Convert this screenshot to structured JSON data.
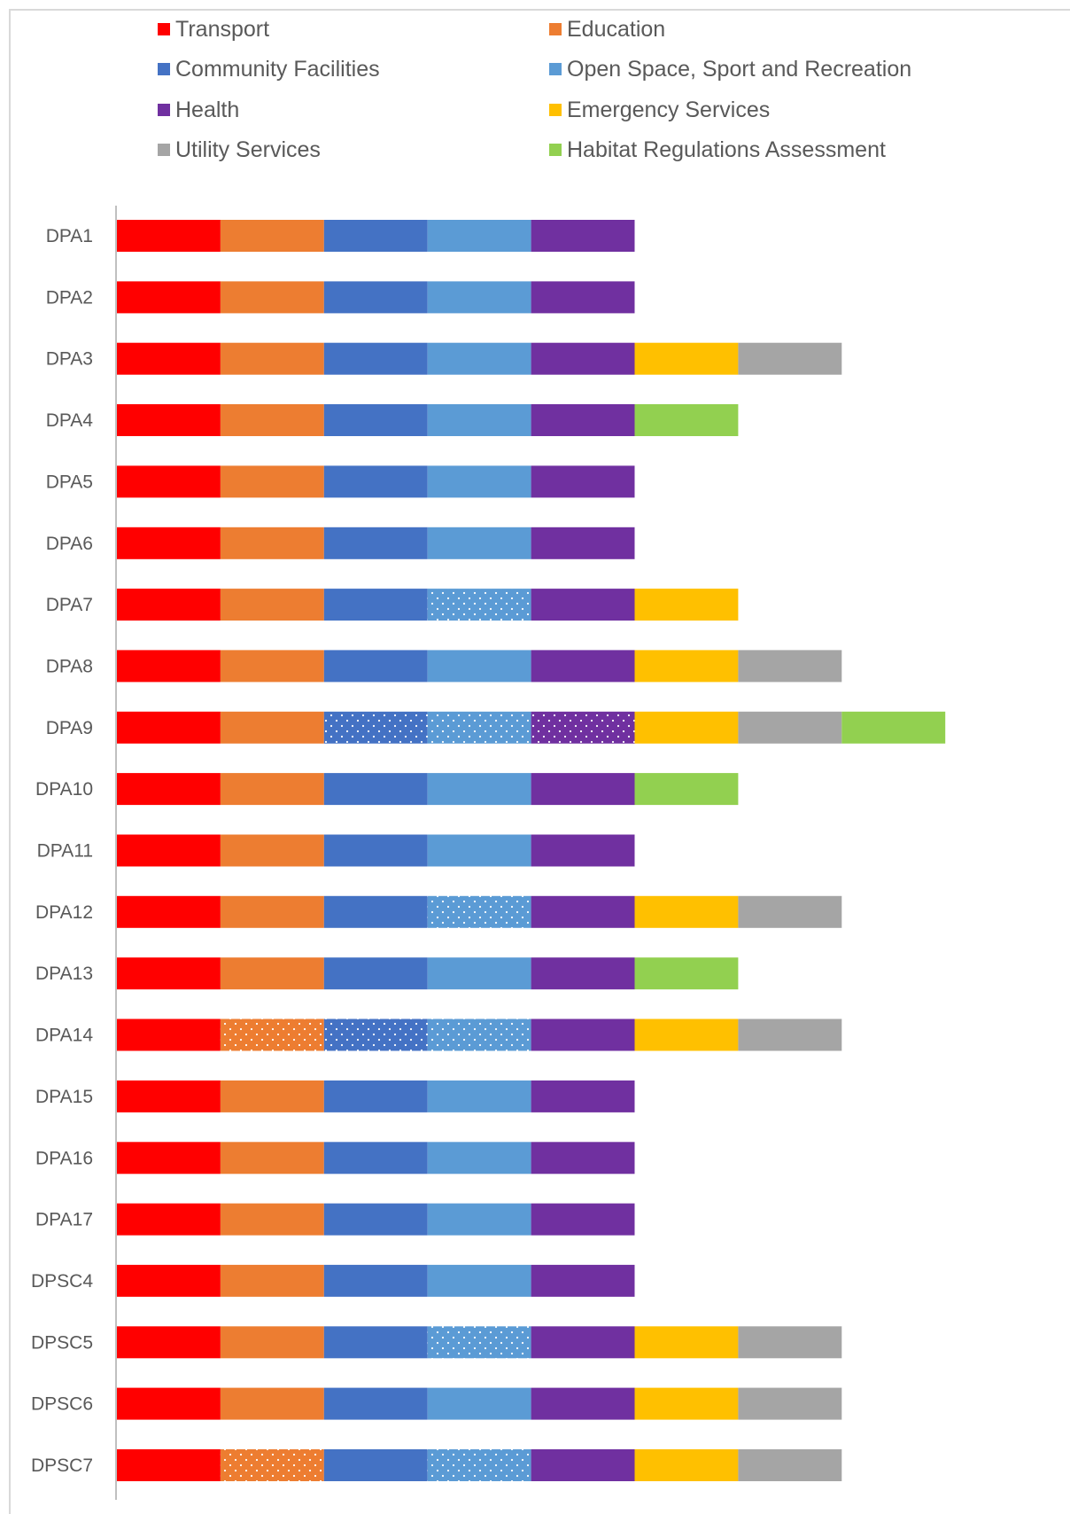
{
  "chart_data": {
    "type": "bar",
    "orientation": "horizontal",
    "stacked": true,
    "title": "",
    "xlabel": "",
    "ylabel": "",
    "grid": false,
    "legend_position": "top",
    "categories": [
      "DPA1",
      "DPA2",
      "DPA3",
      "DPA4",
      "DPA5",
      "DPA6",
      "DPA7",
      "DPA8",
      "DPA9",
      "DPA10",
      "DPA11",
      "DPA12",
      "DPA13",
      "DPA14",
      "DPA15",
      "DPA16",
      "DPA17",
      "DPSC4",
      "DPSC5",
      "DPSC6",
      "DPSC7"
    ],
    "series": [
      {
        "name": "Transport",
        "color": "#ff0000",
        "values": [
          1,
          1,
          1,
          1,
          1,
          1,
          1,
          1,
          1,
          1,
          1,
          1,
          1,
          1,
          1,
          1,
          1,
          1,
          1,
          1,
          1
        ],
        "dotted": []
      },
      {
        "name": "Education",
        "color": "#ed7d31",
        "values": [
          1,
          1,
          1,
          1,
          1,
          1,
          1,
          1,
          1,
          1,
          1,
          1,
          1,
          1,
          1,
          1,
          1,
          1,
          1,
          1,
          1
        ],
        "dotted": [
          "DPA14",
          "DPSC7"
        ]
      },
      {
        "name": "Community Facilities",
        "color": "#4472c4",
        "values": [
          1,
          1,
          1,
          1,
          1,
          1,
          1,
          1,
          1,
          1,
          1,
          1,
          1,
          1,
          1,
          1,
          1,
          1,
          1,
          1,
          1
        ],
        "dotted": [
          "DPA9",
          "DPA14"
        ]
      },
      {
        "name": "Open Space, Sport and Recreation",
        "color": "#5b9bd5",
        "values": [
          1,
          1,
          1,
          1,
          1,
          1,
          1,
          1,
          1,
          1,
          1,
          1,
          1,
          1,
          1,
          1,
          1,
          1,
          1,
          1,
          1
        ],
        "dotted": [
          "DPA7",
          "DPA9",
          "DPA12",
          "DPA14",
          "DPSC5",
          "DPSC7"
        ]
      },
      {
        "name": "Health",
        "color": "#7030a0",
        "values": [
          1,
          1,
          1,
          1,
          1,
          1,
          1,
          1,
          1,
          1,
          1,
          1,
          1,
          1,
          1,
          1,
          1,
          1,
          1,
          1,
          1
        ],
        "dotted": [
          "DPA9"
        ]
      },
      {
        "name": "Emergency Services",
        "color": "#ffc000",
        "values": [
          0,
          0,
          1,
          0,
          0,
          0,
          1,
          1,
          1,
          0,
          0,
          1,
          0,
          1,
          0,
          0,
          0,
          0,
          1,
          1,
          1
        ],
        "dotted": []
      },
      {
        "name": "Utility Services",
        "color": "#a5a5a5",
        "values": [
          0,
          0,
          1,
          0,
          0,
          0,
          0,
          1,
          1,
          0,
          0,
          1,
          0,
          1,
          0,
          0,
          0,
          0,
          1,
          1,
          1
        ],
        "dotted": []
      },
      {
        "name": "Habitat Regulations Assessment",
        "color": "#92d050",
        "values": [
          0,
          0,
          0,
          1,
          0,
          0,
          0,
          0,
          1,
          1,
          0,
          0,
          1,
          0,
          0,
          0,
          0,
          0,
          0,
          0,
          0
        ],
        "dotted": []
      }
    ]
  }
}
